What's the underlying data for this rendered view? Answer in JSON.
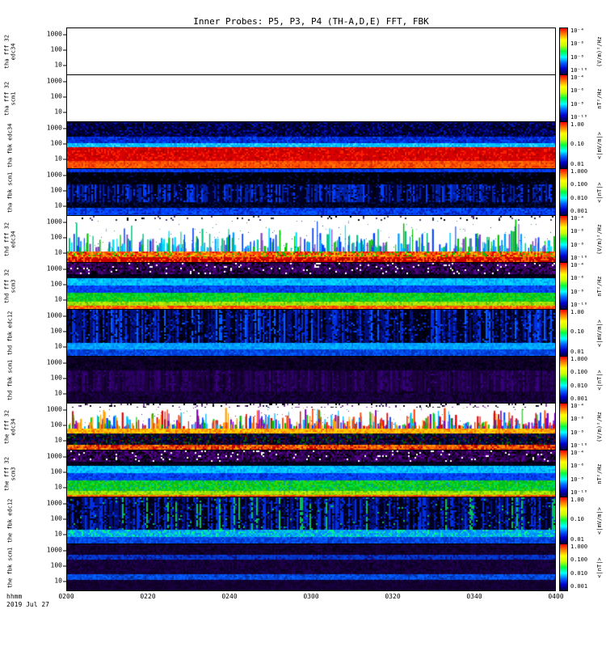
{
  "title": "Inner Probes: P5, P3, P4 (TH-A,D,E) FFT, FBK",
  "x_axis": {
    "label": "hhmm",
    "ticks": [
      "0200",
      "0220",
      "0240",
      "0300",
      "0320",
      "0340",
      "0400"
    ]
  },
  "footer": {
    "date": "2019 Jul 27"
  },
  "colors": {
    "colorbar_stops": [
      "#000040",
      "#0000cc",
      "#0060ff",
      "#00ffff",
      "#00ff40",
      "#c8ff00",
      "#ffff00",
      "#ff8000",
      "#ff0000"
    ],
    "axis": "#000000",
    "background": "#ffffff"
  },
  "chart_data": {
    "type": "heatmap",
    "title": "Inner Probes: P5, P3, P4 (TH-A,D,E) FFT, FBK",
    "x": {
      "ticks": [
        "0200",
        "0220",
        "0240",
        "0300",
        "0320",
        "0340",
        "0400"
      ],
      "unit": "hhmm",
      "date": "2019 Jul 27"
    },
    "y_scale": "log",
    "panels": [
      {
        "id": "tha_fff_32_edc34",
        "ylabel": "tha fff 32 edc34",
        "y_ticks": [
          "1000",
          "100",
          "10"
        ],
        "colorbar": {
          "unit": "(V/m)²/Hz",
          "ticks": [
            "10⁻⁴",
            "10⁻⁶",
            "10⁻⁸",
            "10⁻¹⁰"
          ]
        },
        "bands": [
          {
            "h": 1.0,
            "style": "solid",
            "colors": [
              "#ffffff"
            ]
          }
        ]
      },
      {
        "id": "tha_fff_32_scm1",
        "ylabel": "tha fff 32 scm1",
        "y_ticks": [
          "1000",
          "100",
          "10"
        ],
        "colorbar": {
          "unit": "nT²/Hz",
          "ticks": [
            "10⁻⁴",
            "10⁻⁶",
            "10⁻⁸",
            "10⁻¹⁰"
          ]
        },
        "bands": [
          {
            "h": 1.0,
            "style": "solid",
            "colors": [
              "#ffffff"
            ]
          }
        ]
      },
      {
        "id": "tha_fbk_edc34",
        "ylabel": "tha fbk edc34",
        "y_ticks": [
          "1000",
          "100",
          "10"
        ],
        "colorbar": {
          "unit": "<|mV/m|>",
          "ticks": [
            "1.00",
            "0.10",
            "0.01"
          ]
        },
        "bands": [
          {
            "h": 0.32,
            "style": "noise",
            "colors": [
              "#000028",
              "#000070",
              "#0018b0",
              "#000000"
            ],
            "weights": [
              0.45,
              0.3,
              0.15,
              0.1
            ]
          },
          {
            "h": 0.14,
            "style": "noise",
            "colors": [
              "#0030e0",
              "#0018a0",
              "#0050ff"
            ],
            "weights": [
              0.5,
              0.3,
              0.2
            ]
          },
          {
            "h": 0.08,
            "style": "noise",
            "colors": [
              "#00c8ff",
              "#00a0ff",
              "#40e0ff"
            ],
            "weights": [
              0.5,
              0.3,
              0.2
            ]
          },
          {
            "h": 0.3,
            "style": "noise",
            "colors": [
              "#d80000",
              "#b00000",
              "#ff2000"
            ],
            "weights": [
              0.6,
              0.2,
              0.2
            ]
          },
          {
            "h": 0.16,
            "style": "noise",
            "colors": [
              "#ff5000",
              "#e03000",
              "#ff7800"
            ],
            "weights": [
              0.5,
              0.3,
              0.2
            ]
          }
        ]
      },
      {
        "id": "tha_fbk_scm1",
        "ylabel": "tha fbk scm1",
        "y_ticks": [
          "1000",
          "100",
          "10"
        ],
        "colorbar": {
          "unit": "<|nT|>",
          "ticks": [
            "1.000",
            "0.100",
            "0.010",
            "0.001"
          ]
        },
        "bands": [
          {
            "h": 0.07,
            "style": "noise",
            "colors": [
              "#0040ff",
              "#0028c0"
            ],
            "weights": [
              0.6,
              0.4
            ]
          },
          {
            "h": 0.26,
            "style": "noise",
            "colors": [
              "#000008",
              "#000020",
              "#001060"
            ],
            "weights": [
              0.7,
              0.2,
              0.1
            ]
          },
          {
            "h": 0.38,
            "style": "vstreaks",
            "colors": [
              "#000030",
              "#0020a0",
              "#0040ff",
              "#000010"
            ],
            "weights": [
              0.4,
              0.3,
              0.15,
              0.15
            ]
          },
          {
            "h": 0.13,
            "style": "noise",
            "colors": [
              "#000018",
              "#001050"
            ],
            "weights": [
              0.7,
              0.3
            ]
          },
          {
            "h": 0.16,
            "style": "noise",
            "colors": [
              "#0040ff",
              "#0060ff",
              "#0020b0"
            ],
            "weights": [
              0.5,
              0.2,
              0.3
            ]
          }
        ]
      },
      {
        "id": "thd_fff_32_edc34",
        "ylabel": "thd fff 32 edc34",
        "y_ticks": [
          "1000",
          "100",
          "10"
        ],
        "colorbar": {
          "unit": "(V/m)²/Hz",
          "ticks": [
            "10⁻⁴",
            "10⁻⁶",
            "10⁻⁸",
            "10⁻¹⁰"
          ]
        },
        "bands": [
          {
            "h": 0.1,
            "style": "speckle",
            "bg": "#ffffff",
            "colors": [
              "#303050",
              "#000000",
              "#604080"
            ],
            "density": 0.08
          },
          {
            "h": 0.66,
            "style": "spikes",
            "bg": "#ffffff",
            "colors": [
              "#0040ff",
              "#00a0ff",
              "#00c080",
              "#00e0ff",
              "#8040c0",
              "#00c000"
            ],
            "density": 0.55,
            "maxh": 0.95
          },
          {
            "h": 0.12,
            "style": "noise",
            "colors": [
              "#ff4000",
              "#ff8000",
              "#ffc000",
              "#e00000",
              "#00c000"
            ],
            "weights": [
              0.3,
              0.25,
              0.2,
              0.15,
              0.1
            ]
          },
          {
            "h": 0.12,
            "style": "noise",
            "colors": [
              "#d00000",
              "#ff6000",
              "#b00000"
            ],
            "weights": [
              0.5,
              0.3,
              0.2
            ]
          }
        ]
      },
      {
        "id": "thd_fff_32_scm3",
        "ylabel": "thd fff 32 scm3",
        "y_ticks": [
          "1000",
          "100",
          "10"
        ],
        "colorbar": {
          "unit": "nT²/Hz",
          "ticks": [
            "10⁻⁴",
            "10⁻⁶",
            "10⁻⁸",
            "10⁻¹⁰"
          ]
        },
        "bands": [
          {
            "h": 0.24,
            "style": "noise",
            "colors": [
              "#380060",
              "#200040",
              "#000000",
              "#6000a0",
              "#ffffff"
            ],
            "weights": [
              0.35,
              0.25,
              0.2,
              0.15,
              0.05
            ]
          },
          {
            "h": 0.08,
            "style": "noise",
            "colors": [
              "#000010",
              "#100030"
            ],
            "weights": [
              0.7,
              0.3
            ]
          },
          {
            "h": 0.16,
            "style": "noise",
            "colors": [
              "#00c0ff",
              "#00e0ff",
              "#0090ff"
            ],
            "weights": [
              0.5,
              0.25,
              0.25
            ]
          },
          {
            "h": 0.16,
            "style": "noise",
            "colors": [
              "#0040ff",
              "#0060ff",
              "#0028c0"
            ],
            "weights": [
              0.5,
              0.25,
              0.25
            ]
          },
          {
            "h": 0.2,
            "style": "noise",
            "colors": [
              "#00c020",
              "#00e040",
              "#40d000"
            ],
            "weights": [
              0.5,
              0.3,
              0.2
            ]
          },
          {
            "h": 0.09,
            "style": "noise",
            "colors": [
              "#a0e000",
              "#c0f000",
              "#60c000"
            ],
            "weights": [
              0.5,
              0.3,
              0.2
            ]
          },
          {
            "h": 0.07,
            "style": "noise",
            "colors": [
              "#ff6000",
              "#ff3000",
              "#ffa000"
            ],
            "weights": [
              0.5,
              0.3,
              0.2
            ]
          }
        ]
      },
      {
        "id": "thd_fbk_edc12",
        "ylabel": "thd fbk edc12",
        "y_ticks": [
          "1000",
          "100",
          "10"
        ],
        "colorbar": {
          "unit": "<|mV/m|>",
          "ticks": [
            "1.00",
            "0.10",
            "0.01"
          ]
        },
        "bands": [
          {
            "h": 0.72,
            "style": "vstreaks",
            "colors": [
              "#000020",
              "#001080",
              "#0030e0",
              "#000000",
              "#0060ff"
            ],
            "weights": [
              0.35,
              0.25,
              0.2,
              0.12,
              0.08
            ]
          },
          {
            "h": 0.14,
            "style": "noise",
            "colors": [
              "#00a0ff",
              "#00c0ff",
              "#0080ff"
            ],
            "weights": [
              0.5,
              0.3,
              0.2
            ]
          },
          {
            "h": 0.14,
            "style": "noise",
            "colors": [
              "#0040e0",
              "#0060ff",
              "#0030b0"
            ],
            "weights": [
              0.5,
              0.3,
              0.2
            ]
          }
        ]
      },
      {
        "id": "thd_fbk_scm1",
        "ylabel": "thd fbk scm1",
        "y_ticks": [
          "1000",
          "100",
          "10"
        ],
        "colorbar": {
          "unit": "<|nT|>",
          "ticks": [
            "1.000",
            "0.100",
            "0.010",
            "0.001"
          ]
        },
        "bands": [
          {
            "h": 0.3,
            "style": "noise",
            "colors": [
              "#0c0020",
              "#180038",
              "#000010"
            ],
            "weights": [
              0.5,
              0.3,
              0.2
            ]
          },
          {
            "h": 0.45,
            "style": "vstreaks",
            "colors": [
              "#1c0040",
              "#2a0060",
              "#100028",
              "#380080"
            ],
            "weights": [
              0.4,
              0.3,
              0.2,
              0.1
            ]
          },
          {
            "h": 0.25,
            "style": "noise",
            "colors": [
              "#140030",
              "#200050",
              "#0a0018"
            ],
            "weights": [
              0.5,
              0.3,
              0.2
            ]
          }
        ]
      },
      {
        "id": "the_fff_32_edc34",
        "ylabel": "the fff 32 edc34",
        "y_ticks": [
          "1000",
          "100",
          "10"
        ],
        "colorbar": {
          "unit": "(V/m)²/Hz",
          "ticks": [
            "10⁻⁴",
            "10⁻⁶",
            "10⁻⁸",
            "10⁻¹⁰"
          ]
        },
        "bands": [
          {
            "h": 0.08,
            "style": "speckle",
            "bg": "#ffffff",
            "colors": [
              "#202040",
              "#000000",
              "#8040a0"
            ],
            "density": 0.15
          },
          {
            "h": 0.46,
            "style": "spikes",
            "bg": "#ffffff",
            "colors": [
              "#0040ff",
              "#00c000",
              "#ff4000",
              "#ffa000",
              "#00c0ff",
              "#8000c0",
              "#e00000"
            ],
            "density": 0.85,
            "maxh": 0.95
          },
          {
            "h": 0.1,
            "style": "noise",
            "colors": [
              "#ffc000",
              "#ff9000",
              "#ffe000",
              "#ff6000"
            ],
            "weights": [
              0.4,
              0.3,
              0.2,
              0.1
            ]
          },
          {
            "h": 0.24,
            "style": "noise",
            "colors": [
              "#000018",
              "#001060",
              "#300060",
              "#006000",
              "#600000"
            ],
            "weights": [
              0.45,
              0.2,
              0.15,
              0.1,
              0.1
            ]
          },
          {
            "h": 0.12,
            "style": "noise",
            "colors": [
              "#e04000",
              "#ff7000",
              "#c00000",
              "#ffa000"
            ],
            "weights": [
              0.4,
              0.25,
              0.2,
              0.15
            ]
          }
        ]
      },
      {
        "id": "the_fff_32_scm3",
        "ylabel": "the fff 32 scm3",
        "y_ticks": [
          "1000",
          "100",
          "10"
        ],
        "colorbar": {
          "unit": "nT²/Hz",
          "ticks": [
            "10⁻⁴",
            "10⁻⁶",
            "10⁻⁸",
            "10⁻¹⁰"
          ]
        },
        "bands": [
          {
            "h": 0.24,
            "style": "noise",
            "colors": [
              "#380060",
              "#200040",
              "#000000",
              "#6000a0",
              "#ffffff"
            ],
            "weights": [
              0.35,
              0.25,
              0.2,
              0.15,
              0.05
            ]
          },
          {
            "h": 0.08,
            "style": "noise",
            "colors": [
              "#000010",
              "#100030"
            ],
            "weights": [
              0.7,
              0.3
            ]
          },
          {
            "h": 0.15,
            "style": "noise",
            "colors": [
              "#00c0ff",
              "#00e0ff",
              "#0090ff"
            ],
            "weights": [
              0.5,
              0.25,
              0.25
            ]
          },
          {
            "h": 0.16,
            "style": "noise",
            "colors": [
              "#0040ff",
              "#0060ff",
              "#0028c0"
            ],
            "weights": [
              0.5,
              0.25,
              0.25
            ]
          },
          {
            "h": 0.22,
            "style": "noise",
            "colors": [
              "#00c020",
              "#00e040",
              "#40d000",
              "#00a0a0"
            ],
            "weights": [
              0.45,
              0.25,
              0.2,
              0.1
            ]
          },
          {
            "h": 0.08,
            "style": "noise",
            "colors": [
              "#a0e000",
              "#c0f000",
              "#60c000"
            ],
            "weights": [
              0.5,
              0.3,
              0.2
            ]
          },
          {
            "h": 0.07,
            "style": "noise",
            "colors": [
              "#ff6000",
              "#ff3000",
              "#ffa000"
            ],
            "weights": [
              0.5,
              0.3,
              0.2
            ]
          }
        ]
      },
      {
        "id": "the_fbk_edc12",
        "ylabel": "the fbk edc12",
        "y_ticks": [
          "1000",
          "100",
          "10"
        ],
        "colorbar": {
          "unit": "<|mV/m|>",
          "ticks": [
            "1.00",
            "0.10",
            "0.01"
          ]
        },
        "bands": [
          {
            "h": 0.7,
            "style": "vstreaks",
            "colors": [
              "#000020",
              "#001080",
              "#0030e0",
              "#000000",
              "#00c060"
            ],
            "weights": [
              0.33,
              0.25,
              0.22,
              0.12,
              0.08
            ]
          },
          {
            "h": 0.15,
            "style": "noise",
            "colors": [
              "#00a0ff",
              "#00d0d0",
              "#00ff80",
              "#0080ff"
            ],
            "weights": [
              0.4,
              0.25,
              0.15,
              0.2
            ]
          },
          {
            "h": 0.15,
            "style": "noise",
            "colors": [
              "#0040e0",
              "#0060ff",
              "#0030b0"
            ],
            "weights": [
              0.5,
              0.3,
              0.2
            ]
          }
        ]
      },
      {
        "id": "the_fbk_scm1",
        "ylabel": "the fbk scm1",
        "y_ticks": [
          "1000",
          "100",
          "10"
        ],
        "colorbar": {
          "unit": "<|nT|>",
          "ticks": [
            "1.000",
            "0.100",
            "0.010",
            "0.001"
          ]
        },
        "bands": [
          {
            "h": 0.22,
            "style": "noise",
            "colors": [
              "#10002a",
              "#1c0044",
              "#060014"
            ],
            "weights": [
              0.5,
              0.3,
              0.2
            ]
          },
          {
            "h": 0.1,
            "style": "noise",
            "colors": [
              "#0030c0",
              "#0040e0",
              "#101080"
            ],
            "weights": [
              0.5,
              0.3,
              0.2
            ]
          },
          {
            "h": 0.32,
            "style": "noise",
            "colors": [
              "#140032",
              "#20004e",
              "#0a001e"
            ],
            "weights": [
              0.5,
              0.3,
              0.2
            ]
          },
          {
            "h": 0.13,
            "style": "noise",
            "colors": [
              "#0048e0",
              "#0060ff",
              "#0030a0"
            ],
            "weights": [
              0.5,
              0.3,
              0.2
            ]
          },
          {
            "h": 0.23,
            "style": "noise",
            "colors": [
              "#100028",
              "#1a0040"
            ],
            "weights": [
              0.6,
              0.4
            ]
          }
        ]
      }
    ]
  }
}
